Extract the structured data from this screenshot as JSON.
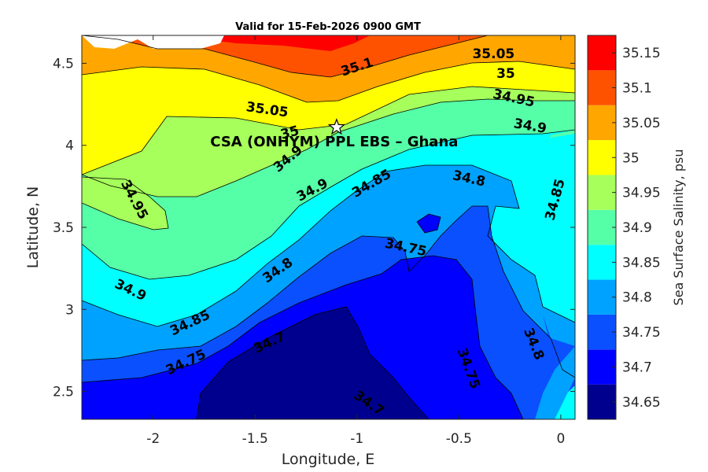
{
  "chart_data": {
    "type": "heatmap",
    "title": "Valid for 15-Feb-2026 0900 GMT",
    "xlabel": "Longitude, E",
    "ylabel": "Latitude, N",
    "xlim": [
      -2.35,
      0.07
    ],
    "ylim": [
      2.33,
      4.67
    ],
    "x_ticks": [
      {
        "value": -2,
        "label": "-2"
      },
      {
        "value": -1.5,
        "label": "-1.5"
      },
      {
        "value": -1,
        "label": "-1"
      },
      {
        "value": -0.5,
        "label": "-0.5"
      },
      {
        "value": 0,
        "label": "0"
      }
    ],
    "y_ticks": [
      {
        "value": 2.5,
        "label": "2.5"
      },
      {
        "value": 3,
        "label": "3"
      },
      {
        "value": 3.5,
        "label": "3.5"
      },
      {
        "value": 4,
        "label": "4"
      },
      {
        "value": 4.5,
        "label": "4.5"
      }
    ],
    "colorbar": {
      "label": "Sea Surface Salinity, psu",
      "levels": [
        34.65,
        34.7,
        34.75,
        34.8,
        34.85,
        34.9,
        34.95,
        35.0,
        35.05,
        35.1,
        35.15
      ],
      "tick_labels": [
        "34.65",
        "34.7",
        "34.75",
        "34.8",
        "34.85",
        "34.9",
        "34.95",
        "35",
        "35.05",
        "35.1",
        "35.15"
      ],
      "colors": [
        "#00008f",
        "#0000ff",
        "#0a50ff",
        "#00a2ff",
        "#00ffff",
        "#55ffa8",
        "#a6ff5a",
        "#ffff00",
        "#ffa600",
        "#ff5200",
        "#ff0000"
      ]
    },
    "contour_labels": [
      {
        "text": "35.05",
        "lon": -0.33,
        "lat": 4.56,
        "angle": 0
      },
      {
        "text": "35.1",
        "lon": -1.0,
        "lat": 4.48,
        "angle": -18
      },
      {
        "text": "35",
        "lon": -0.27,
        "lat": 4.44,
        "angle": 0
      },
      {
        "text": "35.05",
        "lon": -1.44,
        "lat": 4.22,
        "angle": 8
      },
      {
        "text": "34.95",
        "lon": -0.23,
        "lat": 4.29,
        "angle": 12
      },
      {
        "text": "35",
        "lon": -1.33,
        "lat": 4.08,
        "angle": -15
      },
      {
        "text": "34.9",
        "lon": -0.15,
        "lat": 4.12,
        "angle": 10
      },
      {
        "text": "34.9",
        "lon": -1.34,
        "lat": 3.92,
        "angle": -40
      },
      {
        "text": "34.95",
        "lon": -2.09,
        "lat": 3.67,
        "angle": 62
      },
      {
        "text": "34.9",
        "lon": -1.22,
        "lat": 3.73,
        "angle": -28
      },
      {
        "text": "34.85",
        "lon": -0.93,
        "lat": 3.77,
        "angle": -30
      },
      {
        "text": "34.8",
        "lon": -0.45,
        "lat": 3.8,
        "angle": 12
      },
      {
        "text": "34.85",
        "lon": -0.03,
        "lat": 3.67,
        "angle": -75
      },
      {
        "text": "34.75",
        "lon": -0.76,
        "lat": 3.38,
        "angle": 12
      },
      {
        "text": "34.8",
        "lon": -1.39,
        "lat": 3.24,
        "angle": -35
      },
      {
        "text": "34.9",
        "lon": -2.11,
        "lat": 3.12,
        "angle": 25
      },
      {
        "text": "34.85",
        "lon": -1.82,
        "lat": 2.92,
        "angle": -25
      },
      {
        "text": "34.7",
        "lon": -1.43,
        "lat": 2.8,
        "angle": -25
      },
      {
        "text": "34.75",
        "lon": -1.84,
        "lat": 2.68,
        "angle": -25
      },
      {
        "text": "34.75",
        "lon": -0.45,
        "lat": 2.64,
        "angle": 70
      },
      {
        "text": "34.8",
        "lon": -0.13,
        "lat": 2.79,
        "angle": 68
      },
      {
        "text": "34.7",
        "lon": -0.94,
        "lat": 2.43,
        "angle": 35
      }
    ],
    "site": {
      "label": "CSA (ONHYM) PPL EBS  – Ghana",
      "lon": -1.1,
      "lat": 4.11
    }
  }
}
